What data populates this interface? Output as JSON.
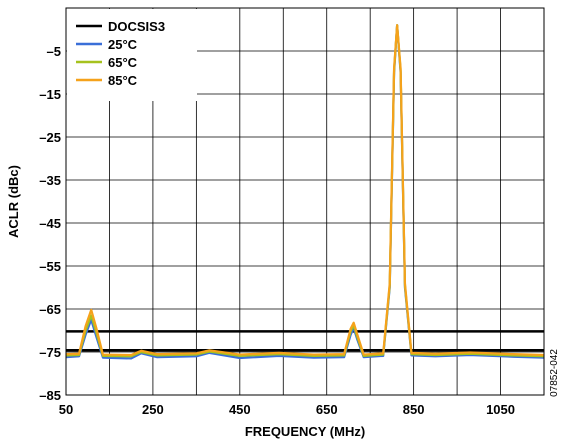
{
  "chart_data": {
    "type": "line",
    "xlabel": "FREQUENCY (MHz)",
    "ylabel": "ACLR (dBc)",
    "xlim": [
      50,
      1150
    ],
    "ylim": [
      -85,
      5
    ],
    "x_ticks": [
      50,
      250,
      450,
      650,
      850,
      1050
    ],
    "y_ticks": [
      -5,
      -15,
      -25,
      -35,
      -45,
      -55,
      -65,
      -75,
      -85
    ],
    "x_tick_labels": [
      "50",
      "250",
      "450",
      "650",
      "850",
      "1050"
    ],
    "y_tick_labels": [
      "–5",
      "–15",
      "–25",
      "–35",
      "–45",
      "–55",
      "–65",
      "–75",
      "–85"
    ],
    "grid": true,
    "legend_position": "top-left",
    "reference_lines": [
      {
        "name": "DOCSIS3",
        "color": "#000000",
        "points": [
          [
            50,
            -70.2
          ],
          [
            1150,
            -70.2
          ]
        ]
      },
      {
        "name": "DOCSIS3",
        "color": "#000000",
        "points": [
          [
            50,
            -74.6
          ],
          [
            1150,
            -74.6
          ]
        ]
      }
    ],
    "series": [
      {
        "name": "DOCSIS3",
        "color": "#000000",
        "points": [
          [
            50,
            -70.2
          ],
          [
            1150,
            -70.2
          ]
        ]
      },
      {
        "name": "25°C",
        "color": "#3a6fd8",
        "points": [
          [
            50,
            -76.2
          ],
          [
            80,
            -76.0
          ],
          [
            95,
            -71.0
          ],
          [
            108,
            -67.5
          ],
          [
            120,
            -71.5
          ],
          [
            135,
            -76.3
          ],
          [
            200,
            -76.5
          ],
          [
            223,
            -75.3
          ],
          [
            260,
            -76.2
          ],
          [
            350,
            -76.0
          ],
          [
            380,
            -75.2
          ],
          [
            450,
            -76.4
          ],
          [
            540,
            -75.9
          ],
          [
            620,
            -76.3
          ],
          [
            690,
            -76.2
          ],
          [
            705,
            -71.0
          ],
          [
            712,
            -69.4
          ],
          [
            720,
            -72.0
          ],
          [
            735,
            -76.2
          ],
          [
            780,
            -75.9
          ],
          [
            795,
            -60.0
          ],
          [
            805,
            -10.0
          ],
          [
            812,
            1.0
          ],
          [
            820,
            -10.0
          ],
          [
            830,
            -60.0
          ],
          [
            845,
            -75.8
          ],
          [
            900,
            -76.0
          ],
          [
            980,
            -75.7
          ],
          [
            1080,
            -76.1
          ],
          [
            1150,
            -76.3
          ]
        ]
      },
      {
        "name": "65°C",
        "color": "#a6c21e",
        "points": [
          [
            50,
            -75.8
          ],
          [
            80,
            -75.7
          ],
          [
            95,
            -70.0
          ],
          [
            108,
            -66.5
          ],
          [
            120,
            -70.5
          ],
          [
            135,
            -75.9
          ],
          [
            200,
            -76.0
          ],
          [
            223,
            -75.0
          ],
          [
            260,
            -75.8
          ],
          [
            350,
            -75.6
          ],
          [
            380,
            -74.9
          ],
          [
            450,
            -75.9
          ],
          [
            540,
            -75.5
          ],
          [
            620,
            -75.9
          ],
          [
            690,
            -75.8
          ],
          [
            705,
            -70.2
          ],
          [
            712,
            -68.8
          ],
          [
            720,
            -71.4
          ],
          [
            735,
            -75.9
          ],
          [
            780,
            -75.6
          ],
          [
            795,
            -59.5
          ],
          [
            805,
            -9.5
          ],
          [
            812,
            1.0
          ],
          [
            820,
            -9.5
          ],
          [
            830,
            -59.5
          ],
          [
            845,
            -75.5
          ],
          [
            900,
            -75.7
          ],
          [
            980,
            -75.4
          ],
          [
            1080,
            -75.8
          ],
          [
            1150,
            -76.0
          ]
        ]
      },
      {
        "name": "85°C",
        "color": "#f5a21b",
        "points": [
          [
            50,
            -75.5
          ],
          [
            80,
            -75.4
          ],
          [
            95,
            -69.0
          ],
          [
            108,
            -65.2
          ],
          [
            120,
            -69.5
          ],
          [
            135,
            -75.6
          ],
          [
            200,
            -75.7
          ],
          [
            223,
            -74.7
          ],
          [
            260,
            -75.5
          ],
          [
            350,
            -75.3
          ],
          [
            380,
            -74.6
          ],
          [
            450,
            -75.6
          ],
          [
            540,
            -75.2
          ],
          [
            620,
            -75.6
          ],
          [
            690,
            -75.5
          ],
          [
            705,
            -69.6
          ],
          [
            712,
            -68.2
          ],
          [
            720,
            -70.8
          ],
          [
            735,
            -75.6
          ],
          [
            780,
            -75.3
          ],
          [
            795,
            -59.0
          ],
          [
            805,
            -9.0
          ],
          [
            812,
            1.0
          ],
          [
            820,
            -9.0
          ],
          [
            830,
            -59.0
          ],
          [
            845,
            -75.2
          ],
          [
            900,
            -75.4
          ],
          [
            980,
            -75.1
          ],
          [
            1080,
            -75.5
          ],
          [
            1150,
            -75.7
          ]
        ]
      }
    ],
    "figure_id": "07852-042"
  }
}
